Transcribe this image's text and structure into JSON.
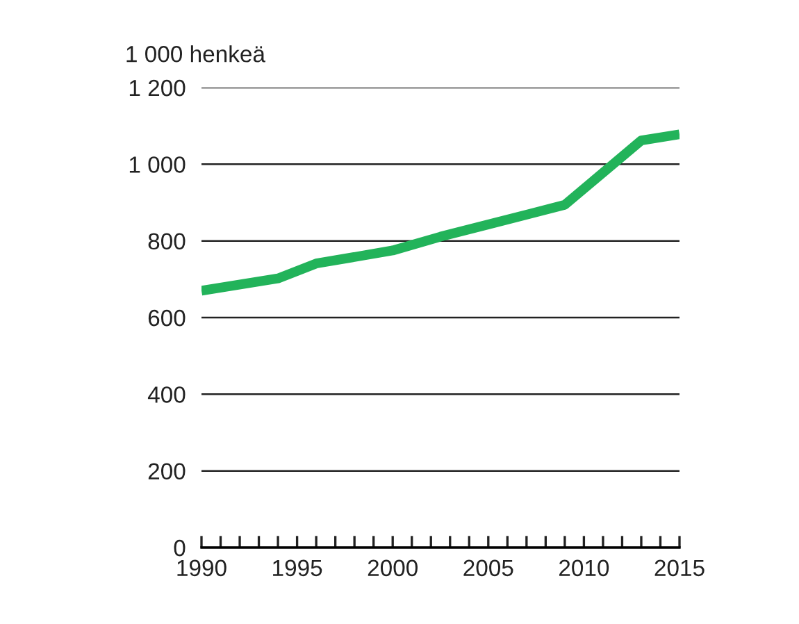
{
  "chart_data": {
    "type": "line",
    "ylabel": "1 000 henkeä",
    "x": [
      1990,
      1994,
      1996,
      2000,
      2002.5,
      2005,
      2009,
      2013,
      2015
    ],
    "series": [
      {
        "color": "#22b35a",
        "values": [
          670,
          702,
          741,
          775,
          811,
          843,
          894,
          1062,
          1078
        ]
      }
    ],
    "xlim": [
      1990,
      2015
    ],
    "xticks": [
      1990,
      {
        "value": 1991,
        "label": null
      },
      {
        "value": 1992,
        "label": null
      },
      {
        "value": 1993,
        "label": null
      },
      {
        "value": 1994,
        "label": null
      },
      1995,
      {
        "value": 1996,
        "label": null
      },
      {
        "value": 1997,
        "label": null
      },
      {
        "value": 1998,
        "label": null
      },
      {
        "value": 1999,
        "label": null
      },
      2000,
      {
        "value": 2001,
        "label": null
      },
      {
        "value": 2002,
        "label": null
      },
      {
        "value": 2003,
        "label": null
      },
      {
        "value": 2004,
        "label": null
      },
      2005,
      {
        "value": 2006,
        "label": null
      },
      {
        "value": 2007,
        "label": null
      },
      {
        "value": 2008,
        "label": null
      },
      {
        "value": 2009,
        "label": null
      },
      2010,
      {
        "value": 2011,
        "label": null
      },
      {
        "value": 2012,
        "label": null
      },
      {
        "value": 2013,
        "label": null
      },
      {
        "value": 2014,
        "label": null
      },
      2015
    ],
    "ylim": [
      0,
      1200
    ],
    "yticks": [
      0,
      200,
      400,
      600,
      800,
      {
        "value": 1000,
        "label": "1 000"
      },
      {
        "value": 1200,
        "label": "1 200"
      }
    ],
    "grid": "y",
    "marker": "none",
    "line_style": "solid"
  }
}
